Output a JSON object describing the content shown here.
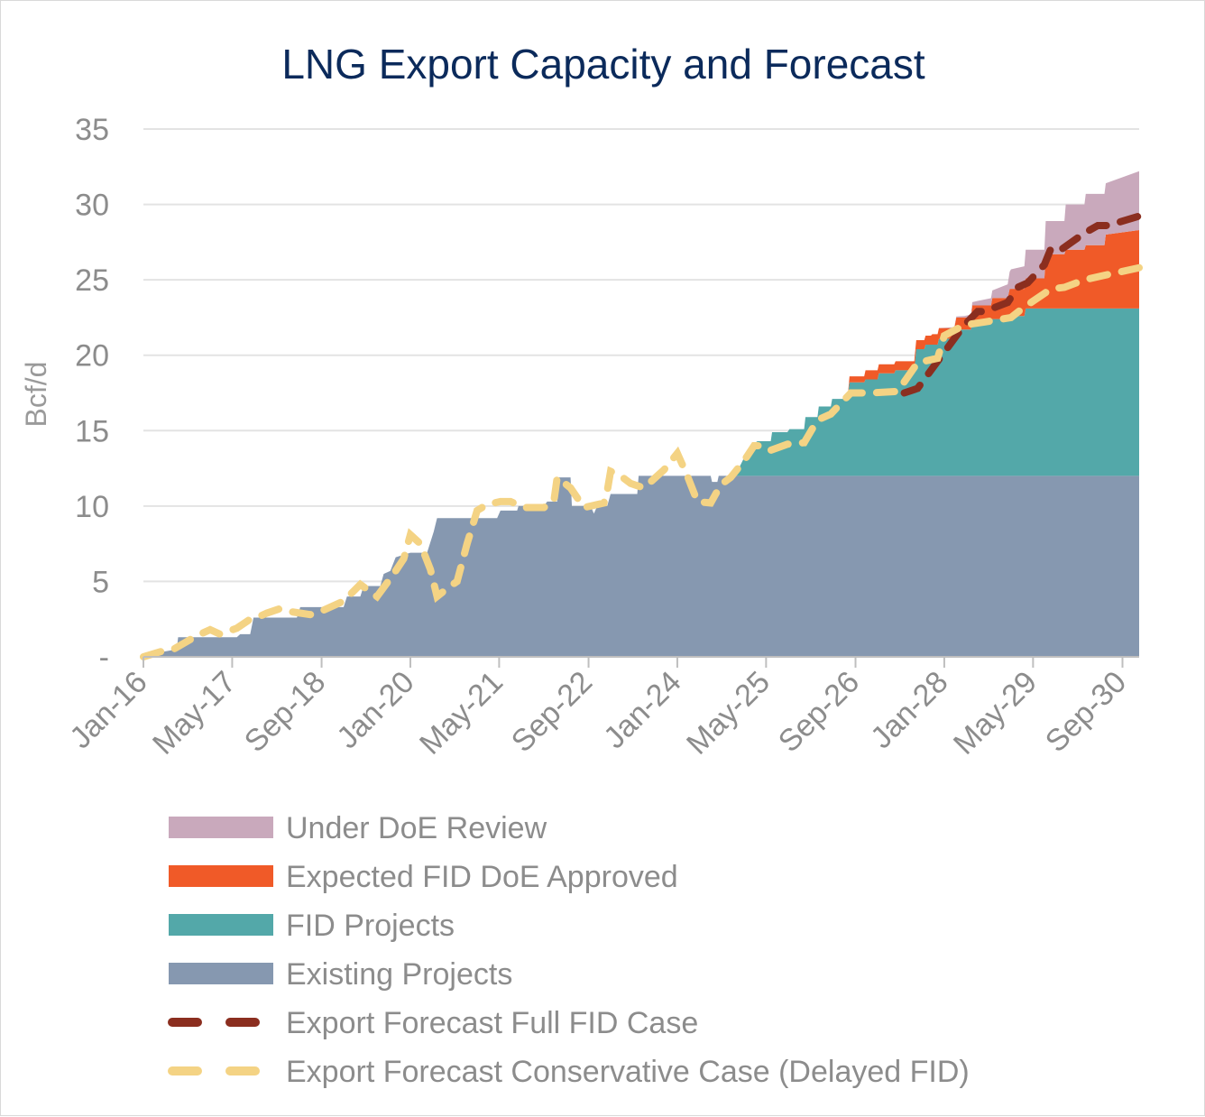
{
  "chart_data": {
    "type": "area",
    "title": "LNG Export Capacity and Forecast",
    "ylabel": "Bcf/d",
    "xlabel": "",
    "ylim": [
      0,
      35
    ],
    "yticks": [
      {
        "value": 0,
        "label": "-"
      },
      {
        "value": 5,
        "label": "5"
      },
      {
        "value": 10,
        "label": "10"
      },
      {
        "value": 15,
        "label": "15"
      },
      {
        "value": 20,
        "label": "20"
      },
      {
        "value": 25,
        "label": "25"
      },
      {
        "value": 30,
        "label": "30"
      },
      {
        "value": 35,
        "label": "35"
      }
    ],
    "x_start": 2016.0,
    "x_end": 2030.92,
    "xticks": [
      {
        "t": 2016.0,
        "label": "Jan-16"
      },
      {
        "t": 2017.33,
        "label": "May-17"
      },
      {
        "t": 2018.67,
        "label": "Sep-18"
      },
      {
        "t": 2020.0,
        "label": "Jan-20"
      },
      {
        "t": 2021.33,
        "label": "May-21"
      },
      {
        "t": 2022.67,
        "label": "Sep-22"
      },
      {
        "t": 2024.0,
        "label": "Jan-24"
      },
      {
        "t": 2025.33,
        "label": "May-25"
      },
      {
        "t": 2026.67,
        "label": "Sep-26"
      },
      {
        "t": 2028.0,
        "label": "Jan-28"
      },
      {
        "t": 2029.33,
        "label": "May-29"
      },
      {
        "t": 2030.67,
        "label": "Sep-30"
      }
    ],
    "stacked_series": [
      {
        "name": "Existing Projects",
        "color": "#8698b0",
        "points": [
          [
            2016.0,
            0.1
          ],
          [
            2016.5,
            0.5
          ],
          [
            2016.52,
            1.3
          ],
          [
            2017.4,
            1.3
          ],
          [
            2017.45,
            1.5
          ],
          [
            2017.6,
            1.5
          ],
          [
            2017.65,
            2.6
          ],
          [
            2018.0,
            2.6
          ],
          [
            2018.05,
            2.6
          ],
          [
            2018.3,
            2.6
          ],
          [
            2018.35,
            3.3
          ],
          [
            2019.0,
            3.3
          ],
          [
            2019.05,
            4.0
          ],
          [
            2019.25,
            4.0
          ],
          [
            2019.3,
            4.7
          ],
          [
            2019.55,
            4.7
          ],
          [
            2019.6,
            5.5
          ],
          [
            2019.7,
            5.7
          ],
          [
            2019.78,
            6.6
          ],
          [
            2020.0,
            6.9
          ],
          [
            2020.25,
            6.9
          ],
          [
            2020.35,
            8.3
          ],
          [
            2020.4,
            9.2
          ],
          [
            2020.9,
            9.2
          ],
          [
            2020.95,
            9.2
          ],
          [
            2021.3,
            9.2
          ],
          [
            2021.35,
            9.7
          ],
          [
            2021.6,
            9.7
          ],
          [
            2021.62,
            10.0
          ],
          [
            2022.0,
            10.0
          ],
          [
            2022.05,
            10.3
          ],
          [
            2022.2,
            10.3
          ],
          [
            2022.22,
            11.9
          ],
          [
            2022.4,
            11.9
          ],
          [
            2022.42,
            10.0
          ],
          [
            2022.7,
            10.0
          ],
          [
            2022.75,
            9.5
          ],
          [
            2022.8,
            10.0
          ],
          [
            2022.95,
            10.0
          ],
          [
            2023.0,
            10.8
          ],
          [
            2023.4,
            10.8
          ],
          [
            2023.42,
            12.0
          ],
          [
            2023.7,
            12.0
          ],
          [
            2023.72,
            12.0
          ],
          [
            2024.0,
            12.0
          ],
          [
            2024.5,
            12.0
          ],
          [
            2024.52,
            11.6
          ],
          [
            2024.6,
            11.6
          ],
          [
            2024.62,
            12.0
          ],
          [
            2030.92,
            12.0
          ]
        ]
      },
      {
        "name": "FID Projects",
        "color": "#53a8a9",
        "points": [
          [
            2016.0,
            0
          ],
          [
            2024.8,
            0
          ],
          [
            2024.9,
            0.3
          ],
          [
            2025.0,
            1.2
          ],
          [
            2025.1,
            2.0
          ],
          [
            2025.2,
            2.3
          ],
          [
            2025.4,
            2.3
          ],
          [
            2025.42,
            2.9
          ],
          [
            2025.65,
            2.9
          ],
          [
            2025.68,
            3.1
          ],
          [
            2025.9,
            3.1
          ],
          [
            2025.92,
            3.9
          ],
          [
            2026.1,
            3.9
          ],
          [
            2026.12,
            4.6
          ],
          [
            2026.3,
            4.6
          ],
          [
            2026.32,
            5.1
          ],
          [
            2026.55,
            5.1
          ],
          [
            2026.58,
            6.2
          ],
          [
            2026.8,
            6.2
          ],
          [
            2026.82,
            6.4
          ],
          [
            2027.0,
            6.4
          ],
          [
            2027.02,
            6.8
          ],
          [
            2027.25,
            6.8
          ],
          [
            2027.27,
            7.0
          ],
          [
            2027.55,
            7.0
          ],
          [
            2027.58,
            8.4
          ],
          [
            2027.7,
            8.4
          ],
          [
            2027.72,
            8.7
          ],
          [
            2027.9,
            8.7
          ],
          [
            2027.92,
            9.1
          ],
          [
            2028.15,
            9.1
          ],
          [
            2028.18,
            9.7
          ],
          [
            2028.4,
            9.7
          ],
          [
            2028.42,
            10.3
          ],
          [
            2028.7,
            10.3
          ],
          [
            2028.72,
            10.4
          ],
          [
            2028.95,
            10.4
          ],
          [
            2028.98,
            10.6
          ],
          [
            2029.2,
            10.6
          ],
          [
            2029.22,
            11.1
          ],
          [
            2030.92,
            11.1
          ]
        ]
      },
      {
        "name": "Expected FID DoE Approved",
        "color": "#f05a28",
        "points": [
          [
            2016.0,
            0
          ],
          [
            2026.55,
            0
          ],
          [
            2026.58,
            0.4
          ],
          [
            2026.8,
            0.4
          ],
          [
            2026.82,
            0.6
          ],
          [
            2027.55,
            0.6
          ],
          [
            2027.58,
            0.6
          ],
          [
            2027.8,
            0.6
          ],
          [
            2027.82,
            0.7
          ],
          [
            2028.15,
            0.7
          ],
          [
            2028.18,
            0.8
          ],
          [
            2028.4,
            0.8
          ],
          [
            2028.42,
            1.0
          ],
          [
            2028.7,
            1.0
          ],
          [
            2028.72,
            1.4
          ],
          [
            2028.95,
            1.4
          ],
          [
            2028.98,
            1.8
          ],
          [
            2029.2,
            1.8
          ],
          [
            2029.22,
            2.0
          ],
          [
            2029.5,
            2.0
          ],
          [
            2029.52,
            3.6
          ],
          [
            2029.8,
            3.6
          ],
          [
            2029.82,
            3.9
          ],
          [
            2030.1,
            3.9
          ],
          [
            2030.12,
            4.2
          ],
          [
            2030.4,
            4.2
          ],
          [
            2030.42,
            4.9
          ],
          [
            2030.92,
            5.2
          ]
        ]
      },
      {
        "name": "Under DoE Review",
        "color": "#c9a9bc",
        "points": [
          [
            2016.0,
            0
          ],
          [
            2027.9,
            0
          ],
          [
            2028.3,
            0.1
          ],
          [
            2028.5,
            0.3
          ],
          [
            2028.72,
            0.5
          ],
          [
            2028.95,
            0.9
          ],
          [
            2029.0,
            1.3
          ],
          [
            2029.2,
            1.5
          ],
          [
            2029.22,
            1.9
          ],
          [
            2029.5,
            1.9
          ],
          [
            2029.52,
            2.2
          ],
          [
            2029.8,
            2.2
          ],
          [
            2029.82,
            3.0
          ],
          [
            2030.1,
            3.0
          ],
          [
            2030.12,
            3.4
          ],
          [
            2030.42,
            3.4
          ],
          [
            2030.92,
            3.9
          ]
        ]
      }
    ],
    "line_series": [
      {
        "name": "Export Forecast Full FID Case",
        "color": "#8b2e1f",
        "points": [
          [
            2027.4,
            17.5
          ],
          [
            2027.6,
            17.8
          ],
          [
            2028.3,
            22.0
          ],
          [
            2028.5,
            22.9
          ],
          [
            2028.6,
            22.9
          ],
          [
            2028.95,
            23.5
          ],
          [
            2029.1,
            24.5
          ],
          [
            2029.25,
            24.8
          ],
          [
            2029.5,
            26.0
          ],
          [
            2029.6,
            27.1
          ],
          [
            2029.75,
            27.0
          ],
          [
            2030.1,
            28.1
          ],
          [
            2030.3,
            28.6
          ],
          [
            2030.45,
            28.6
          ],
          [
            2030.9,
            29.2
          ]
        ]
      },
      {
        "name": "Export Forecast Conservative Case (Delayed FID)",
        "color": "#f4d384",
        "points": [
          [
            2016.0,
            0.0
          ],
          [
            2016.3,
            0.4
          ],
          [
            2016.45,
            0.5
          ],
          [
            2016.8,
            1.4
          ],
          [
            2017.0,
            1.8
          ],
          [
            2017.15,
            1.5
          ],
          [
            2017.4,
            1.9
          ],
          [
            2017.6,
            2.5
          ],
          [
            2017.7,
            2.6
          ],
          [
            2017.85,
            2.9
          ],
          [
            2018.05,
            3.2
          ],
          [
            2018.2,
            3.0
          ],
          [
            2018.5,
            2.8
          ],
          [
            2018.6,
            2.9
          ],
          [
            2019.0,
            3.7
          ],
          [
            2019.25,
            4.8
          ],
          [
            2019.5,
            4.0
          ],
          [
            2019.75,
            5.5
          ],
          [
            2019.9,
            6.5
          ],
          [
            2020.0,
            8.1
          ],
          [
            2020.15,
            7.5
          ],
          [
            2020.3,
            5.8
          ],
          [
            2020.4,
            4.0
          ],
          [
            2020.6,
            4.7
          ],
          [
            2020.7,
            5.0
          ],
          [
            2020.85,
            7.5
          ],
          [
            2021.0,
            9.7
          ],
          [
            2021.15,
            10.1
          ],
          [
            2021.35,
            10.3
          ],
          [
            2021.5,
            10.3
          ],
          [
            2021.7,
            9.9
          ],
          [
            2022.0,
            9.9
          ],
          [
            2022.15,
            10.3
          ],
          [
            2022.2,
            11.9
          ],
          [
            2022.4,
            11.2
          ],
          [
            2022.6,
            9.9
          ],
          [
            2022.9,
            10.2
          ],
          [
            2022.95,
            11.0
          ],
          [
            2023.0,
            12.3
          ],
          [
            2023.15,
            12.0
          ],
          [
            2023.3,
            11.5
          ],
          [
            2023.5,
            11.2
          ],
          [
            2023.8,
            12.4
          ],
          [
            2024.0,
            13.5
          ],
          [
            2024.15,
            12.0
          ],
          [
            2024.3,
            10.3
          ],
          [
            2024.5,
            10.2
          ],
          [
            2024.65,
            11.4
          ],
          [
            2024.8,
            11.9
          ],
          [
            2025.0,
            13.0
          ],
          [
            2025.15,
            14.0
          ],
          [
            2025.3,
            14.0
          ],
          [
            2025.4,
            13.7
          ],
          [
            2025.65,
            14.1
          ],
          [
            2025.9,
            14.2
          ],
          [
            2026.1,
            15.7
          ],
          [
            2026.3,
            16.1
          ],
          [
            2026.6,
            17.5
          ],
          [
            2026.9,
            17.5
          ],
          [
            2027.3,
            17.6
          ],
          [
            2027.6,
            19.5
          ],
          [
            2027.9,
            19.8
          ],
          [
            2028.0,
            21.3
          ],
          [
            2028.3,
            22.0
          ],
          [
            2028.6,
            22.2
          ],
          [
            2029.0,
            22.5
          ],
          [
            2029.2,
            23.2
          ],
          [
            2029.6,
            24.4
          ],
          [
            2029.8,
            24.5
          ],
          [
            2030.1,
            25.0
          ],
          [
            2030.4,
            25.3
          ],
          [
            2030.92,
            25.8
          ]
        ]
      }
    ],
    "legend": {
      "position": "bottom",
      "entries": [
        {
          "label": "Under DoE Review",
          "kind": "swatch",
          "color": "#c9a9bc"
        },
        {
          "label": "Expected FID DoE Approved",
          "kind": "swatch",
          "color": "#f05a28"
        },
        {
          "label": "FID Projects",
          "kind": "swatch",
          "color": "#53a8a9"
        },
        {
          "label": "Existing Projects",
          "kind": "swatch",
          "color": "#8698b0"
        },
        {
          "label": "Export Forecast Full FID Case",
          "kind": "dash",
          "color": "#8b2e1f"
        },
        {
          "label": "Export Forecast Conservative Case (Delayed FID)",
          "kind": "dash",
          "color": "#f4d384"
        }
      ]
    }
  }
}
